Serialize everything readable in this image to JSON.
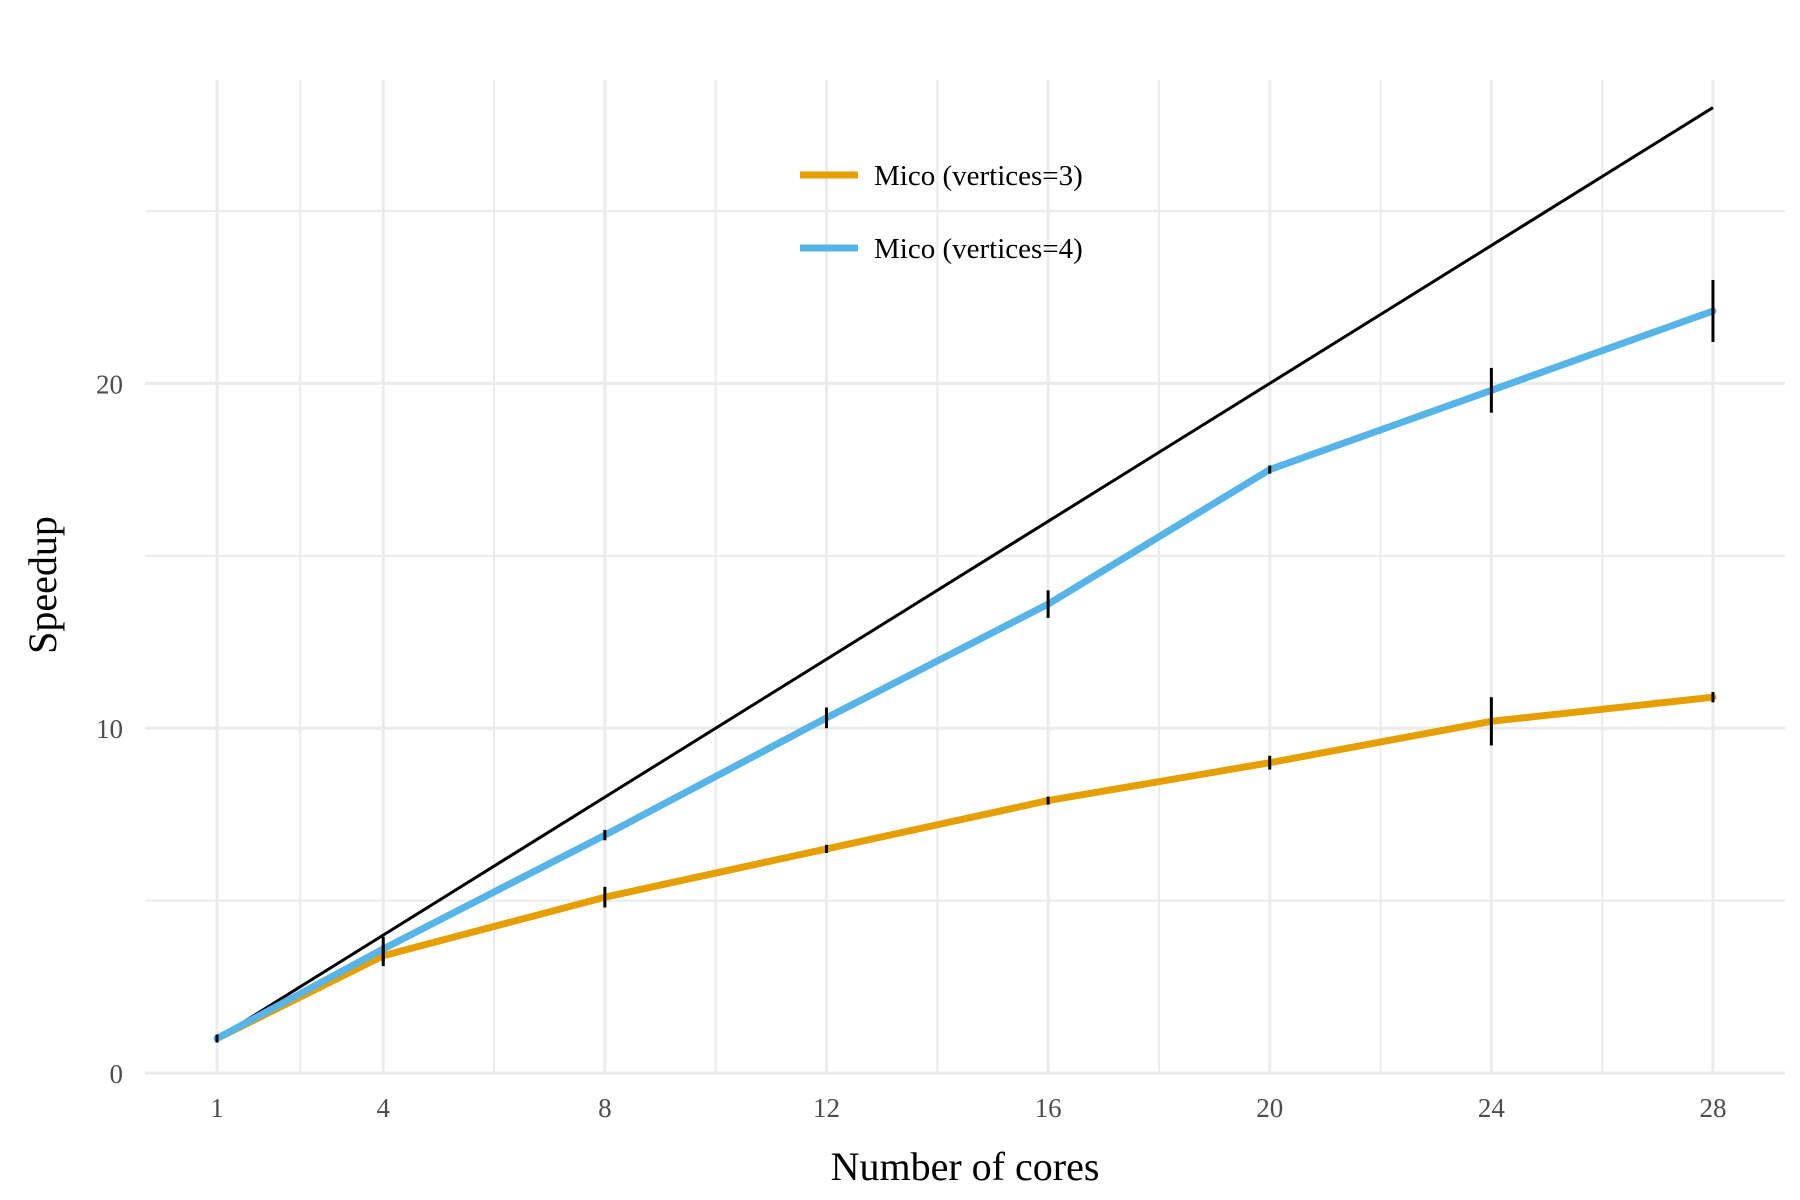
{
  "chart_data": {
    "type": "line",
    "xlabel": "Number of cores",
    "ylabel": "Speedup",
    "x_ticks": [
      1,
      4,
      8,
      12,
      16,
      20,
      24,
      28
    ],
    "y_ticks": [
      0,
      10,
      20
    ],
    "xlim": [
      -0.3,
      29.3
    ],
    "ylim": [
      0,
      28.8
    ],
    "grid": true,
    "legend_position": "top-center",
    "reference_line": {
      "x": [
        1,
        28
      ],
      "y": [
        1,
        28
      ],
      "color": "#000000"
    },
    "series": [
      {
        "name": "Mico (vertices=3)",
        "color": "#E69F00",
        "x": [
          1,
          4,
          8,
          12,
          16,
          20,
          24,
          28
        ],
        "y": [
          1.0,
          3.4,
          5.1,
          6.5,
          7.9,
          9.0,
          10.2,
          10.9
        ],
        "error": [
          0.05,
          0.3,
          0.3,
          0.1,
          0.1,
          0.2,
          0.7,
          0.15
        ]
      },
      {
        "name": "Mico (vertices=4)",
        "color": "#56B4E9",
        "x": [
          1,
          4,
          8,
          12,
          16,
          20,
          24,
          28
        ],
        "y": [
          1.0,
          3.6,
          6.9,
          10.3,
          13.6,
          17.5,
          19.8,
          22.1
        ],
        "error": [
          0.05,
          0.35,
          0.15,
          0.3,
          0.4,
          0.05,
          0.65,
          0.9
        ]
      }
    ]
  }
}
